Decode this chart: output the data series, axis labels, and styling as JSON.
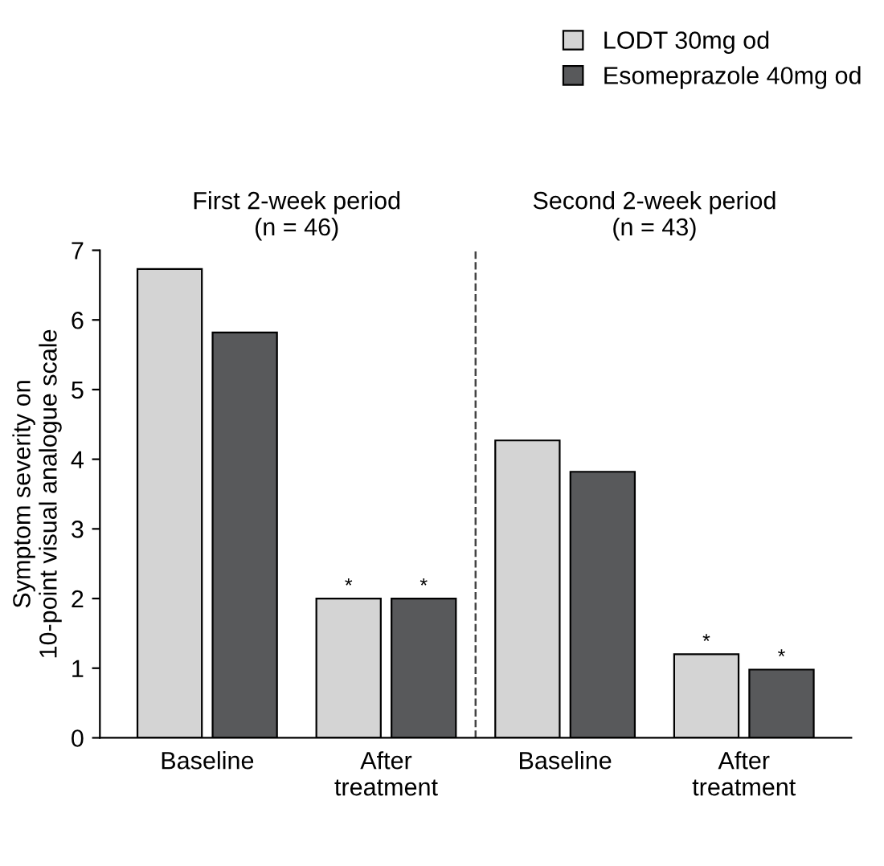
{
  "chart_data": {
    "type": "bar",
    "ylabel": "Symptom severity on\n10-point visual analogue scale",
    "categories": [
      "Baseline",
      "After\ntreatment",
      "Baseline",
      "After\ntreatment"
    ],
    "series": [
      {
        "name": "LODT 30mg od",
        "color": "#d4d4d4",
        "values": [
          6.73,
          2.0,
          4.27,
          1.2
        ],
        "value_labels": [
          null,
          "*",
          null,
          "*"
        ]
      },
      {
        "name": "Esomeprazole 40mg od",
        "color": "#58595b",
        "values": [
          5.82,
          2.0,
          3.82,
          0.98
        ],
        "value_labels": [
          null,
          "*",
          null,
          "*"
        ]
      }
    ],
    "annotations": [
      "First 2-week period\n(n = 46)",
      "Second 2-week period\n(n = 43)"
    ],
    "ylim": [
      0,
      7
    ],
    "yticks": [
      0,
      1,
      2,
      3,
      4,
      5,
      6,
      7
    ],
    "grid": false,
    "legend": "top right"
  }
}
